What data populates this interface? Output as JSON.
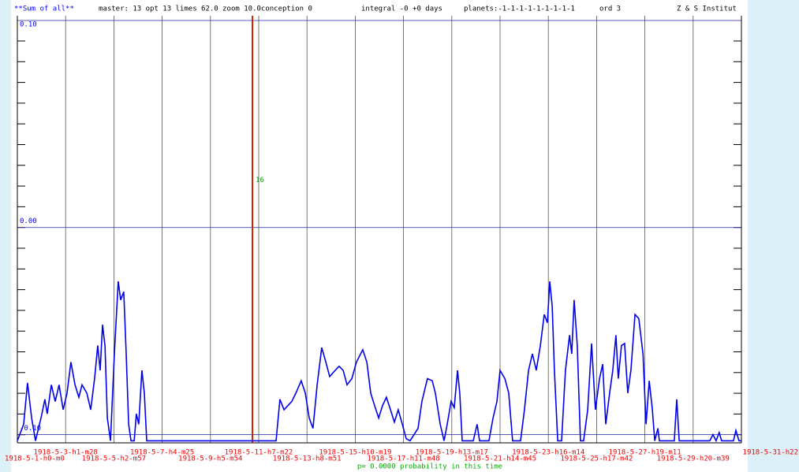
{
  "chart_data": {
    "type": "line",
    "header": [
      "**Sum of all**",
      "master: 13 opt 13 limes 62.0 zoom 10.0conception 0",
      "integral -0 +0 days",
      "planets:-1-1-1-1-1-1-1-1-1",
      "ord 3",
      "Z & S Institut"
    ],
    "footer": "p= 0.0000 probability in this time",
    "xlim": [
      0,
      30
    ],
    "xticks": [
      {
        "value": 0,
        "label": "1918-5-1-h0-m0"
      },
      {
        "value": 2,
        "label": "1918-5-3-h1-m28"
      },
      {
        "value": 4,
        "label": "1918-5-5-h2-m57"
      },
      {
        "value": 6,
        "label": "1918-5-7-h4-m25"
      },
      {
        "value": 8,
        "label": "1918-5-9-h5-m54"
      },
      {
        "value": 10,
        "label": "1918-5-11-h7-m22"
      },
      {
        "value": 12,
        "label": "1918-5-13-h8-m51"
      },
      {
        "value": 14,
        "label": "1918-5-15-h10-m19"
      },
      {
        "value": 16,
        "label": "1918-5-17-h11-m48"
      },
      {
        "value": 18,
        "label": "1918-5-19-h13-m17"
      },
      {
        "value": 20,
        "label": "1918-5-21-h14-m45"
      },
      {
        "value": 22,
        "label": "1918-5-23-h16-m14"
      },
      {
        "value": 24,
        "label": "1918-5-25-h17-m42"
      },
      {
        "value": 26,
        "label": "1918-5-27-h19-m11"
      },
      {
        "value": 28,
        "label": "1918-5-29-h20-m39"
      },
      {
        "value": 30,
        "label": "1918-5-31-h22"
      }
    ],
    "ylim": [
      -0.104,
      0.1
    ],
    "yticks": [
      {
        "value": -0.1,
        "label": "-0.10"
      },
      {
        "value": 0,
        "label": "0.00"
      },
      {
        "value": 0.1,
        "label": "0.10"
      }
    ],
    "grid": true,
    "marker": {
      "x": 9.74,
      "y": 0.023,
      "label": "16",
      "color": "#cc2200"
    },
    "series": [
      {
        "color": "#0000ee",
        "x": [
          0,
          0.26,
          0.42,
          0.59,
          0.75,
          0.98,
          1.14,
          1.24,
          1.41,
          1.57,
          1.73,
          1.9,
          2.06,
          2.22,
          2.39,
          2.55,
          2.68,
          2.88,
          3.04,
          3.2,
          3.33,
          3.43,
          3.53,
          3.63,
          3.73,
          3.86,
          4.02,
          4.18,
          4.28,
          4.41,
          4.51,
          4.61,
          4.71,
          4.84,
          4.93,
          5.03,
          5.16,
          5.26,
          5.36,
          10.72,
          10.88,
          11.05,
          11.21,
          11.37,
          11.54,
          11.76,
          11.93,
          12.09,
          12.25,
          12.42,
          12.61,
          12.78,
          12.94,
          13.17,
          13.33,
          13.5,
          13.66,
          13.86,
          14.05,
          14.31,
          14.48,
          14.64,
          14.8,
          14.97,
          15.13,
          15.29,
          15.46,
          15.62,
          15.78,
          15.95,
          16.11,
          16.27,
          16.6,
          16.76,
          16.99,
          17.19,
          17.32,
          17.52,
          17.68,
          17.81,
          17.97,
          18.1,
          18.24,
          18.33,
          18.43,
          18.89,
          19.05,
          19.15,
          19.54,
          19.71,
          19.87,
          20,
          20.2,
          20.36,
          20.52,
          20.85,
          21.01,
          21.18,
          21.34,
          21.5,
          21.67,
          21.83,
          21.96,
          22.06,
          22.16,
          22.25,
          22.39,
          22.55,
          22.71,
          22.88,
          22.97,
          23.07,
          23.2,
          23.33,
          23.46,
          23.63,
          23.79,
          23.95,
          24.12,
          24.25,
          24.38,
          24.54,
          24.67,
          24.8,
          24.9,
          25.03,
          25.16,
          25.29,
          25.42,
          25.59,
          25.75,
          25.92,
          26.05,
          26.18,
          26.31,
          26.41,
          26.54,
          26.6,
          27.22,
          27.32,
          27.42,
          28.69,
          28.82,
          28.95,
          29.08,
          29.18,
          29.67,
          29.77,
          29.9,
          30
        ],
        "values": [
          -0.103,
          -0.095,
          -0.075,
          -0.092,
          -0.103,
          -0.092,
          -0.083,
          -0.09,
          -0.076,
          -0.084,
          -0.076,
          -0.088,
          -0.08,
          -0.065,
          -0.076,
          -0.082,
          -0.076,
          -0.08,
          -0.088,
          -0.073,
          -0.057,
          -0.069,
          -0.047,
          -0.057,
          -0.092,
          -0.103,
          -0.061,
          -0.026,
          -0.035,
          -0.031,
          -0.061,
          -0.095,
          -0.103,
          -0.103,
          -0.09,
          -0.095,
          -0.069,
          -0.08,
          -0.103,
          -0.103,
          -0.083,
          -0.088,
          -0.086,
          -0.084,
          -0.08,
          -0.074,
          -0.08,
          -0.092,
          -0.097,
          -0.076,
          -0.058,
          -0.065,
          -0.072,
          -0.069,
          -0.067,
          -0.069,
          -0.076,
          -0.073,
          -0.065,
          -0.059,
          -0.065,
          -0.08,
          -0.086,
          -0.092,
          -0.086,
          -0.082,
          -0.088,
          -0.094,
          -0.088,
          -0.095,
          -0.102,
          -0.103,
          -0.097,
          -0.084,
          -0.073,
          -0.074,
          -0.08,
          -0.095,
          -0.103,
          -0.095,
          -0.084,
          -0.087,
          -0.069,
          -0.08,
          -0.103,
          -0.103,
          -0.095,
          -0.103,
          -0.103,
          -0.092,
          -0.084,
          -0.069,
          -0.073,
          -0.08,
          -0.103,
          -0.103,
          -0.088,
          -0.069,
          -0.061,
          -0.069,
          -0.057,
          -0.042,
          -0.046,
          -0.026,
          -0.038,
          -0.069,
          -0.103,
          -0.103,
          -0.069,
          -0.052,
          -0.061,
          -0.035,
          -0.057,
          -0.103,
          -0.103,
          -0.088,
          -0.056,
          -0.088,
          -0.073,
          -0.066,
          -0.095,
          -0.08,
          -0.069,
          -0.052,
          -0.073,
          -0.057,
          -0.056,
          -0.08,
          -0.069,
          -0.042,
          -0.044,
          -0.061,
          -0.095,
          -0.074,
          -0.088,
          -0.103,
          -0.097,
          -0.103,
          -0.103,
          -0.083,
          -0.103,
          -0.103,
          -0.1,
          -0.103,
          -0.099,
          -0.103,
          -0.103,
          -0.098,
          -0.103,
          -0.103
        ]
      }
    ]
  }
}
